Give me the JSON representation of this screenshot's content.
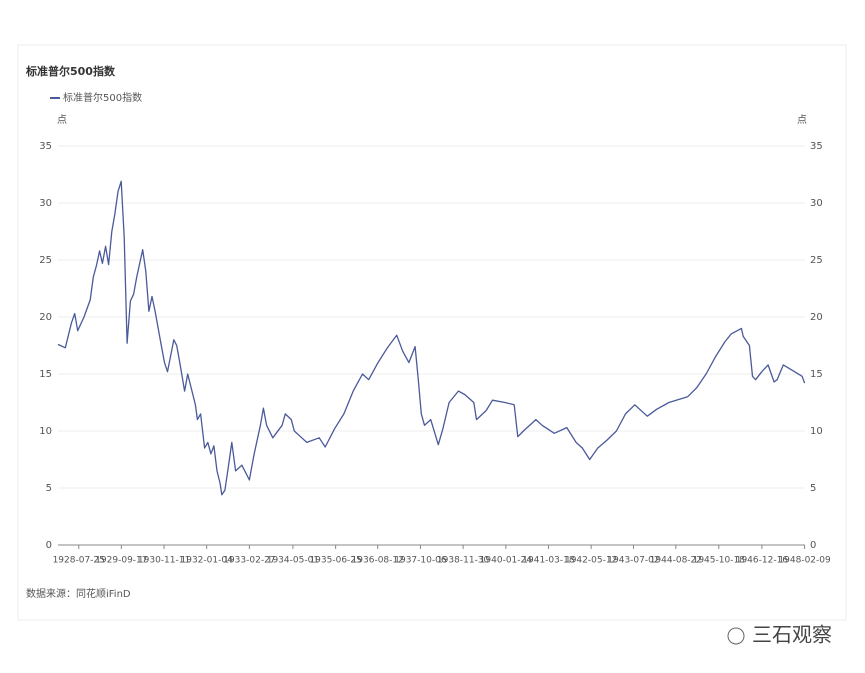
{
  "chart_data": {
    "type": "line",
    "title": "标准普尔500指数",
    "ylabel": "点",
    "y2label": "点",
    "source": "数据来源：同花顺iFinD",
    "watermark": "三石观察",
    "xlim": [
      "1928-01-03",
      "1948-02-13"
    ],
    "xticks": [
      "1928-07-25",
      "1929-09-17",
      "1930-11-11",
      "1932-01-04",
      "1933-02-27",
      "1934-05-01",
      "1935-06-25",
      "1936-08-12",
      "1937-10-06",
      "1938-11-30",
      "1940-01-24",
      "1941-03-18",
      "1942-05-12",
      "1943-07-02",
      "1944-08-22",
      "1945-10-18",
      "1946-12-16",
      "1948-02-09"
    ],
    "ylim": [
      0,
      35
    ],
    "yticks": [
      0,
      5,
      10,
      15,
      20,
      25,
      30,
      35
    ],
    "y2lim": [
      0,
      35
    ],
    "y2ticks": [
      0,
      5,
      10,
      15,
      20,
      25,
      30,
      35
    ],
    "grid": true,
    "legend": "top-left",
    "x": [
      "1928-01-03",
      "1928-03-15",
      "1928-05-15",
      "1928-06-15",
      "1928-07-15",
      "1928-09-15",
      "1928-11-15",
      "1928-12-15",
      "1929-01-15",
      "1929-02-15",
      "1929-03-15",
      "1929-04-15",
      "1929-05-15",
      "1929-06-15",
      "1929-07-15",
      "1929-08-15",
      "1929-09-16",
      "1929-10-15",
      "1929-11-13",
      "1929-12-15",
      "1930-01-15",
      "1930-02-15",
      "1930-04-15",
      "1930-05-15",
      "1930-06-15",
      "1930-07-15",
      "1930-08-15",
      "1930-10-15",
      "1930-11-15",
      "1930-12-15",
      "1931-02-15",
      "1931-03-15",
      "1931-04-15",
      "1931-06-01",
      "1931-07-01",
      "1931-09-15",
      "1931-10-05",
      "1931-11-05",
      "1931-12-15",
      "1932-01-15",
      "1932-02-15",
      "1932-03-15",
      "1932-04-15",
      "1932-05-15",
      "1932-06-01",
      "1932-07-01",
      "1932-08-15",
      "1932-09-07",
      "1932-10-15",
      "1932-12-15",
      "1933-02-27",
      "1933-03-15",
      "1933-04-15",
      "1933-06-15",
      "1933-07-15",
      "1933-08-15",
      "1933-10-15",
      "1934-01-15",
      "1934-02-15",
      "1934-04-15",
      "1934-05-15",
      "1934-07-15",
      "1934-09-15",
      "1935-01-15",
      "1935-03-15",
      "1935-06-15",
      "1935-09-15",
      "1935-12-15",
      "1936-03-15",
      "1936-05-15",
      "1936-08-15",
      "1936-11-15",
      "1937-02-15",
      "1937-04-15",
      "1937-06-15",
      "1937-08-15",
      "1937-09-15",
      "1937-10-15",
      "1937-11-15",
      "1938-01-15",
      "1938-03-31",
      "1938-05-15",
      "1938-07-15",
      "1938-10-15",
      "1938-12-15",
      "1939-03-15",
      "1939-04-11",
      "1939-07-15",
      "1939-09-15",
      "1940-01-15",
      "1940-04-15",
      "1940-05-21",
      "1940-07-15",
      "1940-11-15",
      "1941-01-15",
      "1941-05-15",
      "1941-09-15",
      "1941-12-15",
      "1942-02-15",
      "1942-04-28",
      "1942-07-15",
      "1942-10-15",
      "1943-01-15",
      "1943-04-15",
      "1943-07-15",
      "1943-11-15",
      "1944-02-15",
      "1944-06-15",
      "1944-12-15",
      "1945-03-15",
      "1945-06-15",
      "1945-09-15",
      "1945-12-15",
      "1946-02-15",
      "1946-05-29",
      "1946-06-15",
      "1946-08-15",
      "1946-09-15",
      "1946-10-15",
      "1946-12-15",
      "1947-02-15",
      "1947-04-15",
      "1947-05-15",
      "1947-07-15",
      "1947-10-15",
      "1948-01-15",
      "1948-02-09"
    ],
    "series": [
      {
        "name": "标准普尔500指数",
        "color": "#4a5a9a",
        "values": [
          17.6,
          17.3,
          19.5,
          20.3,
          18.8,
          20.0,
          21.5,
          23.5,
          24.5,
          25.8,
          24.7,
          26.2,
          24.6,
          27.5,
          29.0,
          31.0,
          31.9,
          27.0,
          17.7,
          21.4,
          22.0,
          23.5,
          25.9,
          24.0,
          20.5,
          21.8,
          20.5,
          17.5,
          16.0,
          15.2,
          18.0,
          17.5,
          16.0,
          13.5,
          15.0,
          12.3,
          11.0,
          11.5,
          8.5,
          9.0,
          8.0,
          8.7,
          6.5,
          5.4,
          4.4,
          4.8,
          7.5,
          9.0,
          6.5,
          7.0,
          5.7,
          6.5,
          8.0,
          10.5,
          12.0,
          10.5,
          9.4,
          10.5,
          11.5,
          11.0,
          10.0,
          9.5,
          9.0,
          9.4,
          8.6,
          10.2,
          11.5,
          13.5,
          15.0,
          14.5,
          16.0,
          17.3,
          18.4,
          17.0,
          16.0,
          17.4,
          14.5,
          11.5,
          10.5,
          11.0,
          8.8,
          10.2,
          12.5,
          13.5,
          13.2,
          12.5,
          11.0,
          11.8,
          12.7,
          12.5,
          12.3,
          9.5,
          10.0,
          11.0,
          10.5,
          9.8,
          10.3,
          9.0,
          8.5,
          7.5,
          8.5,
          9.2,
          10.0,
          11.5,
          12.3,
          11.3,
          11.9,
          12.5,
          13.0,
          13.8,
          15.0,
          16.5,
          17.8,
          18.5,
          19.0,
          18.3,
          17.5,
          14.8,
          14.5,
          15.2,
          15.8,
          14.3,
          14.5,
          15.8,
          15.3,
          14.8,
          14.2
        ]
      }
    ]
  }
}
